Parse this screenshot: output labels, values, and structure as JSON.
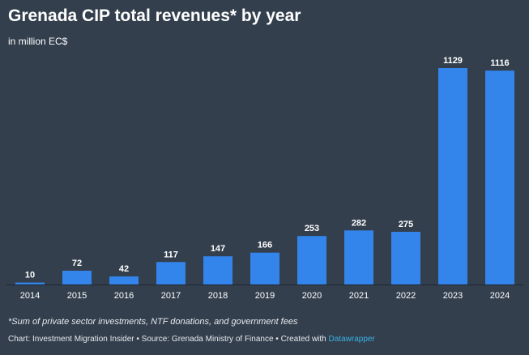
{
  "header": {
    "title": "Grenada CIP total revenues* by year",
    "subtitle": "in million EC$"
  },
  "footer": {
    "footnote": "*Sum of private sector investments, NTF donations, and government fees",
    "credits_text": "Chart: Investment Migration Insider • Source: Grenada Ministry of Finance • Created with ",
    "credits_tool": "Datawrapper"
  },
  "colors": {
    "background": "#333f4d",
    "bar": "#3385eb",
    "text": "#ffffff",
    "link": "#3ab0e6"
  },
  "chart_data": {
    "type": "bar",
    "title": "Grenada CIP total revenues* by year",
    "subtitle": "in million EC$",
    "xlabel": "",
    "ylabel": "",
    "categories": [
      "2014",
      "2015",
      "2016",
      "2017",
      "2018",
      "2019",
      "2020",
      "2021",
      "2022",
      "2023",
      "2024"
    ],
    "values": [
      10,
      72,
      42,
      117,
      147,
      166,
      253,
      282,
      275,
      1129,
      1116
    ],
    "data_labels": [
      "10",
      "72",
      "42",
      "117",
      "147",
      "166",
      "253",
      "282",
      "275",
      "1129",
      "1116"
    ],
    "ylim": [
      0,
      1129
    ],
    "grid": false,
    "legend": "none"
  }
}
